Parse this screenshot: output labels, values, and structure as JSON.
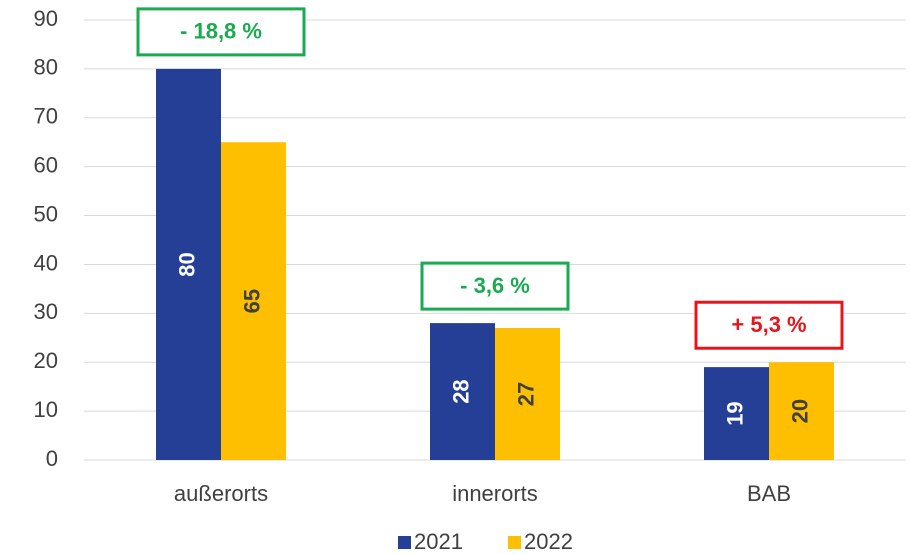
{
  "chart_data": {
    "type": "bar",
    "categories": [
      "außerorts",
      "innerorts",
      "BAB"
    ],
    "series": [
      {
        "name": "2021",
        "color": "#253f97",
        "values": [
          80,
          28,
          19
        ]
      },
      {
        "name": "2022",
        "color": "#fdbf00",
        "values": [
          65,
          27,
          20
        ]
      }
    ],
    "annotations": [
      {
        "text": "- 18,8 %",
        "color": "#1aaa50"
      },
      {
        "text": "- 3,6 %",
        "color": "#1aaa50"
      },
      {
        "text": "+ 5,3 %",
        "color": "#e8141b"
      }
    ],
    "ylim": [
      0,
      90
    ],
    "yticks": [
      0,
      10,
      20,
      30,
      40,
      50,
      60,
      70,
      80,
      90
    ],
    "grid": true,
    "legend": "bottom"
  }
}
